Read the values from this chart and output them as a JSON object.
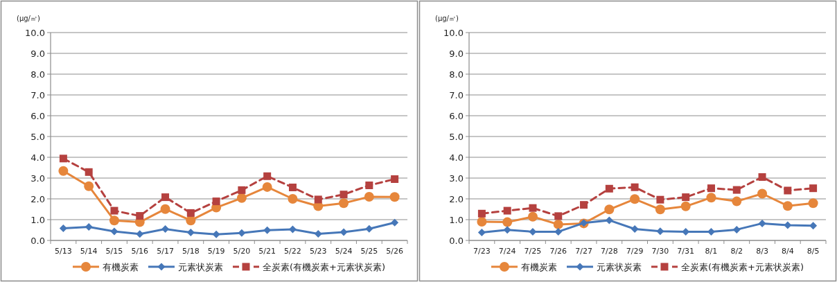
{
  "chart_data": [
    {
      "type": "line",
      "ylabel": "(μg/㎥)",
      "categories": [
        "5/13",
        "5/14",
        "5/15",
        "5/16",
        "5/17",
        "5/18",
        "5/19",
        "5/20",
        "5/21",
        "5/22",
        "5/23",
        "5/24",
        "5/25",
        "5/26"
      ],
      "ylim": [
        0,
        10
      ],
      "yticks": [
        {
          "value": 0,
          "label": "0.0"
        },
        {
          "value": 1,
          "label": "1.0"
        },
        {
          "value": 2,
          "label": "2.0"
        },
        {
          "value": 3,
          "label": "3.0"
        },
        {
          "value": 4,
          "label": "4.0"
        },
        {
          "value": 5,
          "label": "5.0"
        },
        {
          "value": 6,
          "label": "6.0"
        },
        {
          "value": 7,
          "label": "7.0"
        },
        {
          "value": 8,
          "label": "8.0"
        },
        {
          "value": 9,
          "label": "9.0"
        },
        {
          "value": 10,
          "label": "10.0"
        }
      ],
      "grid": "y",
      "legend": "bottom",
      "series": [
        {
          "name": "有機炭素",
          "color": "#e6863b",
          "marker": "circle",
          "line_style": "solid",
          "values": [
            3.34,
            2.61,
            0.96,
            0.88,
            1.51,
            0.96,
            1.58,
            2.04,
            2.57,
            2.0,
            1.65,
            1.79,
            2.1,
            2.09
          ]
        },
        {
          "name": "元素状炭素",
          "color": "#4677b8",
          "marker": "diamond",
          "line_style": "solid",
          "values": [
            0.58,
            0.65,
            0.43,
            0.31,
            0.55,
            0.38,
            0.29,
            0.36,
            0.49,
            0.53,
            0.32,
            0.4,
            0.56,
            0.86
          ]
        },
        {
          "name": "全炭素(有機炭素+元素状炭素)",
          "color": "#b5413f",
          "marker": "square",
          "line_style": "dashed",
          "values": [
            3.94,
            3.29,
            1.43,
            1.18,
            2.08,
            1.32,
            1.88,
            2.42,
            3.09,
            2.55,
            1.97,
            2.21,
            2.65,
            2.95
          ]
        }
      ]
    },
    {
      "type": "line",
      "ylabel": "(μg/㎥)",
      "categories": [
        "7/23",
        "7/24",
        "7/25",
        "7/26",
        "7/27",
        "7/28",
        "7/29",
        "7/30",
        "7/31",
        "8/1",
        "8/2",
        "8/3",
        "8/4",
        "8/5"
      ],
      "ylim": [
        0,
        10
      ],
      "yticks": [
        {
          "value": 0,
          "label": "0.0"
        },
        {
          "value": 1,
          "label": "1.0"
        },
        {
          "value": 2,
          "label": "2.0"
        },
        {
          "value": 3,
          "label": "3.0"
        },
        {
          "value": 4,
          "label": "4.0"
        },
        {
          "value": 5,
          "label": "5.0"
        },
        {
          "value": 6,
          "label": "6.0"
        },
        {
          "value": 7,
          "label": "7.0"
        },
        {
          "value": 8,
          "label": "8.0"
        },
        {
          "value": 9,
          "label": "9.0"
        },
        {
          "value": 10,
          "label": "10.0"
        }
      ],
      "grid": "y",
      "legend": "bottom",
      "series": [
        {
          "name": "有機炭素",
          "color": "#e6863b",
          "marker": "circle",
          "line_style": "solid",
          "values": [
            0.9,
            0.88,
            1.14,
            0.77,
            0.82,
            1.49,
            1.99,
            1.49,
            1.64,
            2.06,
            1.88,
            2.25,
            1.66,
            1.79
          ]
        },
        {
          "name": "元素状炭素",
          "color": "#4677b8",
          "marker": "diamond",
          "line_style": "solid",
          "values": [
            0.38,
            0.51,
            0.42,
            0.42,
            0.84,
            0.97,
            0.55,
            0.44,
            0.42,
            0.42,
            0.52,
            0.82,
            0.73,
            0.71
          ]
        },
        {
          "name": "全炭素(有機炭素+元素状炭素)",
          "color": "#b5413f",
          "marker": "square",
          "line_style": "dashed",
          "values": [
            1.29,
            1.43,
            1.56,
            1.17,
            1.71,
            2.49,
            2.56,
            1.96,
            2.08,
            2.51,
            2.43,
            3.05,
            2.4,
            2.51
          ]
        }
      ]
    }
  ]
}
